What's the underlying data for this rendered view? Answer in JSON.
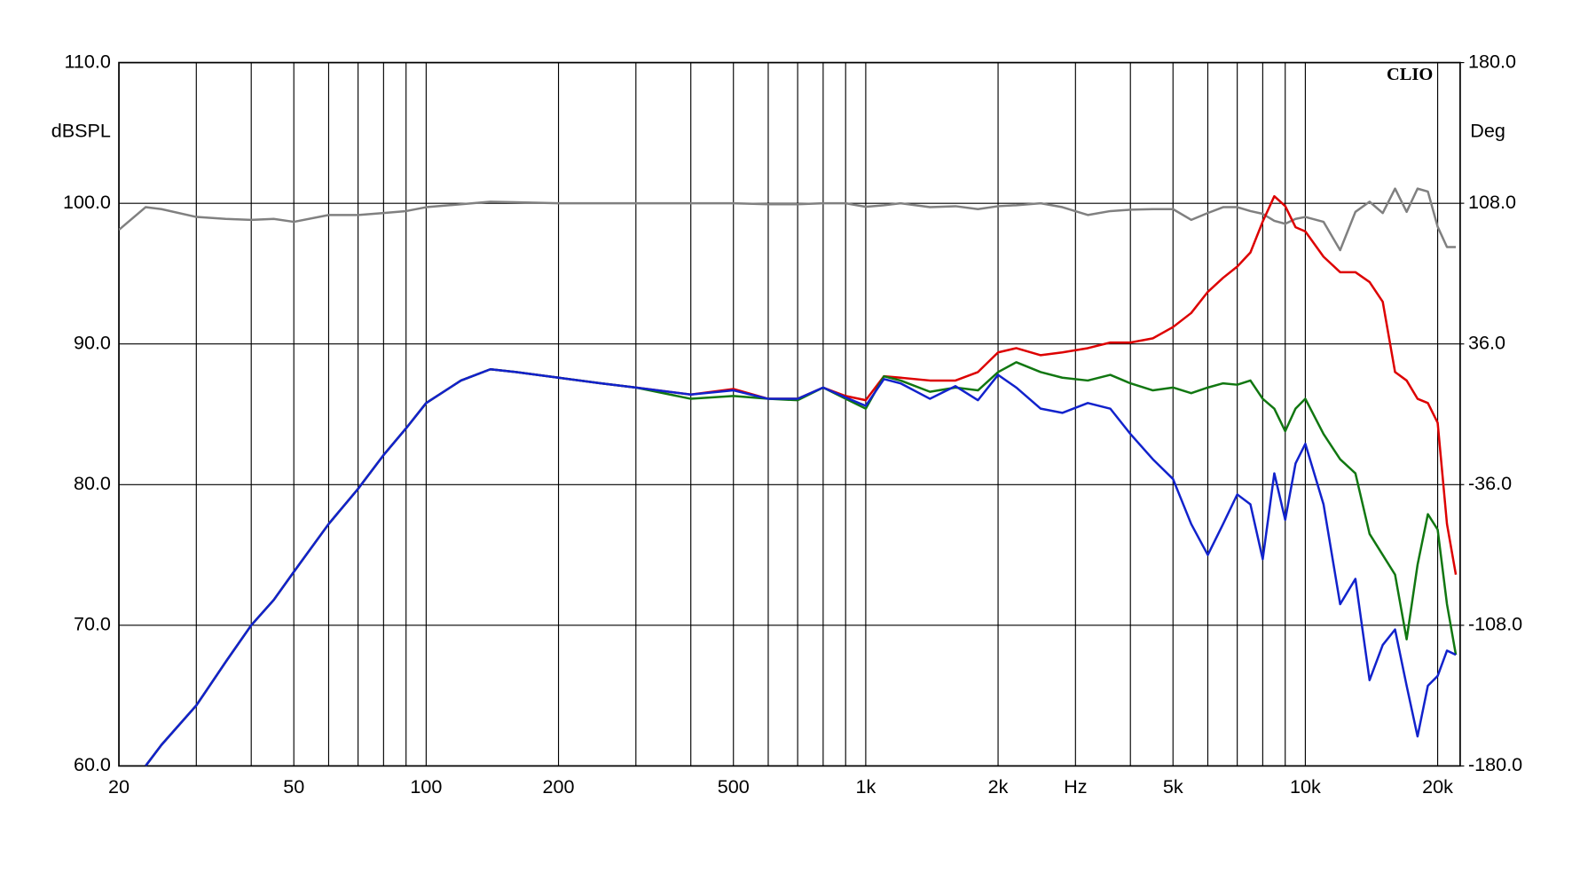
{
  "chart_data": {
    "type": "line",
    "brand": "CLIO",
    "ylabel": "dBSPL",
    "y2label": "Deg",
    "xscale": "log",
    "grid": true,
    "x": [
      20,
      23,
      25,
      30,
      35,
      40,
      45,
      50,
      60,
      70,
      80,
      90,
      100,
      120,
      140,
      160,
      200,
      250,
      300,
      400,
      500,
      600,
      700,
      800,
      900,
      1000,
      1100,
      1200,
      1400,
      1600,
      1800,
      2000,
      2200,
      2500,
      2800,
      3200,
      3600,
      4000,
      4500,
      5000,
      5500,
      6000,
      6500,
      7000,
      7500,
      8000,
      8500,
      9000,
      9500,
      10000,
      11000,
      12000,
      13000,
      14000,
      15000,
      16000,
      17000,
      18000,
      19000,
      20000,
      21000,
      22000
    ],
    "xlim": [
      20,
      22500
    ],
    "xticks": [
      20,
      50,
      100,
      200,
      500,
      {
        "value": 1000,
        "label": "1k"
      },
      {
        "value": 2000,
        "label": "2k"
      },
      {
        "value": 3000,
        "label": "Hz"
      },
      {
        "value": 5000,
        "label": "5k"
      },
      {
        "value": 10000,
        "label": "10k"
      },
      {
        "value": 20000,
        "label": "20k"
      }
    ],
    "xgrid": [
      30,
      40,
      60,
      70,
      80,
      90,
      300,
      400,
      600,
      700,
      800,
      900,
      4000,
      6000,
      7000,
      8000,
      9000
    ],
    "ylim": [
      60,
      110
    ],
    "yticks": [
      {
        "value": 60,
        "label": "60.0"
      },
      {
        "value": 70,
        "label": "70.0"
      },
      {
        "value": 80,
        "label": "80.0"
      },
      {
        "value": 90,
        "label": "90.0"
      },
      {
        "value": 100,
        "label": "100.0"
      },
      {
        "value": 110,
        "label": "110.0"
      }
    ],
    "y2lim": [
      -180,
      180
    ],
    "y2ticks": [
      {
        "value": -180,
        "label": "-180.0"
      },
      {
        "value": -108,
        "label": "-108.0"
      },
      {
        "value": -36,
        "label": "-36.0"
      },
      {
        "value": 36,
        "label": "36.0"
      },
      {
        "value": 108,
        "label": "108.0"
      },
      {
        "value": 180,
        "label": "180.0"
      }
    ],
    "series": [
      {
        "color": "#808080",
        "axis": "y2",
        "values": [
          94.4,
          106,
          105,
          101,
          100,
          99.5,
          100,
          98.5,
          102,
          102,
          103,
          104,
          106,
          107.5,
          108.8,
          108.5,
          108,
          108,
          108,
          108,
          108,
          107.5,
          107.5,
          108,
          108,
          106.2,
          107,
          108,
          106,
          106.5,
          105,
          106.5,
          107,
          108,
          106,
          102,
          104,
          104.7,
          105,
          105,
          99.5,
          103,
          106,
          106,
          104,
          102.6,
          99,
          97.5,
          100,
          101,
          98.5,
          84,
          103.6,
          108.8,
          103,
          115.5,
          103.6,
          115.5,
          114,
          96,
          85.6,
          85.6
        ]
      },
      {
        "color": "#dd0000",
        "values": [
          null,
          60,
          61.5,
          64.3,
          67.4,
          70,
          71.8,
          73.8,
          77.2,
          79.7,
          82.1,
          84,
          85.8,
          87.4,
          88.2,
          88,
          87.6,
          87.2,
          86.9,
          86.4,
          86.8,
          86.1,
          86.1,
          86.9,
          86.3,
          86,
          87.7,
          87.6,
          87.4,
          87.4,
          88,
          89.4,
          89.7,
          89.2,
          89.4,
          89.7,
          90.1,
          90.1,
          90.4,
          91.2,
          92.2,
          93.7,
          94.7,
          95.5,
          96.5,
          98.7,
          100.5,
          99.8,
          98.3,
          98,
          96.2,
          95.1,
          95.1,
          94.4,
          93,
          88,
          87.4,
          86.1,
          85.8,
          84.4,
          77.2,
          73.6
        ]
      },
      {
        "color": "#117711",
        "values": [
          null,
          60,
          61.5,
          64.3,
          67.4,
          70,
          71.8,
          73.8,
          77.2,
          79.7,
          82.1,
          84,
          85.8,
          87.4,
          88.2,
          88,
          87.6,
          87.2,
          86.9,
          86.1,
          86.3,
          86.1,
          86,
          86.9,
          86.1,
          85.4,
          87.7,
          87.4,
          86.6,
          86.9,
          86.7,
          88,
          88.7,
          88,
          87.6,
          87.4,
          87.8,
          87.2,
          86.7,
          86.9,
          86.5,
          86.9,
          87.2,
          87.1,
          87.4,
          86.1,
          85.4,
          83.8,
          85.4,
          86.1,
          83.6,
          81.8,
          80.8,
          76.5,
          75,
          73.6,
          69,
          74.3,
          77.9,
          76.8,
          71.5,
          67.9
        ]
      },
      {
        "color": "#1122cc",
        "values": [
          null,
          60,
          61.5,
          64.3,
          67.4,
          70,
          71.8,
          73.8,
          77.2,
          79.7,
          82.1,
          84,
          85.8,
          87.4,
          88.2,
          88,
          87.6,
          87.2,
          86.9,
          86.4,
          86.7,
          86.1,
          86.1,
          86.9,
          86.2,
          85.6,
          87.5,
          87.2,
          86.1,
          87,
          86,
          87.8,
          86.9,
          85.4,
          85.1,
          85.8,
          85.4,
          83.6,
          81.8,
          80.4,
          77.2,
          75,
          77.2,
          79.3,
          78.6,
          74.7,
          80.8,
          77.5,
          81.5,
          82.9,
          78.6,
          71.5,
          73.3,
          66.1,
          68.6,
          69.7,
          65.7,
          62.1,
          65.7,
          66.4,
          68.2,
          67.9
        ]
      }
    ]
  }
}
